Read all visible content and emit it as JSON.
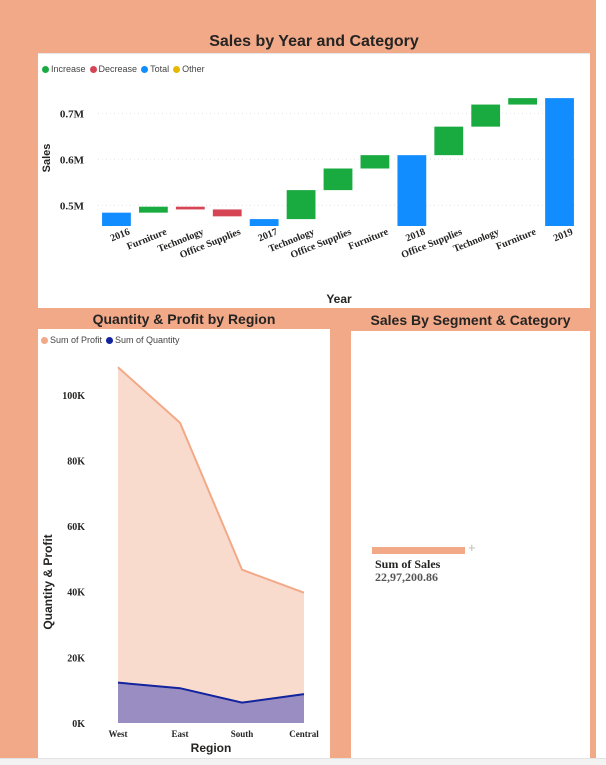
{
  "charts": [
    {
      "title": "Sales by Year and Category",
      "legend": [
        {
          "label": "Increase",
          "color": "#1AAB40"
        },
        {
          "label": "Decrease",
          "color": "#D64554"
        },
        {
          "label": "Total",
          "color": "#118DFF"
        },
        {
          "label": "Other",
          "color": "#E6B800"
        }
      ],
      "ylabel": "Sales",
      "xlabel": "Year",
      "yticks": [
        "0.5M",
        "0.6M",
        "0.7M"
      ]
    },
    {
      "title": "Quantity & Profit by Region",
      "legend": [
        {
          "label": "Sum of Profit",
          "color": "#F2A988"
        },
        {
          "label": "Sum of Quantity",
          "color": "#12239E"
        }
      ],
      "ylabel": "Quantity & Profit",
      "xlabel": "Region",
      "yticks": [
        "0K",
        "20K",
        "40K",
        "60K",
        "80K",
        "100K"
      ]
    },
    {
      "title": "Sales By Segment & Category",
      "legend_label": "Sum of Sales",
      "value": "22,97,200.86"
    }
  ],
  "chart_data": [
    {
      "type": "waterfall",
      "ylim": [
        0.455,
        0.755
      ],
      "categories": [
        "2016",
        "Furniture",
        "Technology",
        "Office Supplies",
        "2017",
        "Technology",
        "Office Supplies",
        "Furniture",
        "2018",
        "Office Supplies",
        "Technology",
        "Furniture",
        "2019"
      ],
      "kinds": [
        "total",
        "increase",
        "decrease",
        "decrease",
        "total",
        "increase",
        "increase",
        "increase",
        "total",
        "increase",
        "increase",
        "increase",
        "total"
      ],
      "start": [
        0.455,
        0.484,
        0.497,
        0.491,
        0.455,
        0.47,
        0.533,
        0.58,
        0.455,
        0.609,
        0.671,
        0.719,
        0.455
      ],
      "end": [
        0.484,
        0.497,
        0.491,
        0.476,
        0.47,
        0.533,
        0.58,
        0.609,
        0.609,
        0.671,
        0.719,
        0.733,
        0.733
      ]
    },
    {
      "type": "area",
      "ylim": [
        0,
        110000
      ],
      "categories": [
        "West",
        "East",
        "South",
        "Central"
      ],
      "series": [
        {
          "name": "Sum of Profit",
          "values": [
            108400,
            91500,
            46700,
            39700
          ]
        },
        {
          "name": "Sum of Quantity",
          "values": [
            12300,
            10600,
            6200,
            8800
          ]
        }
      ]
    }
  ]
}
